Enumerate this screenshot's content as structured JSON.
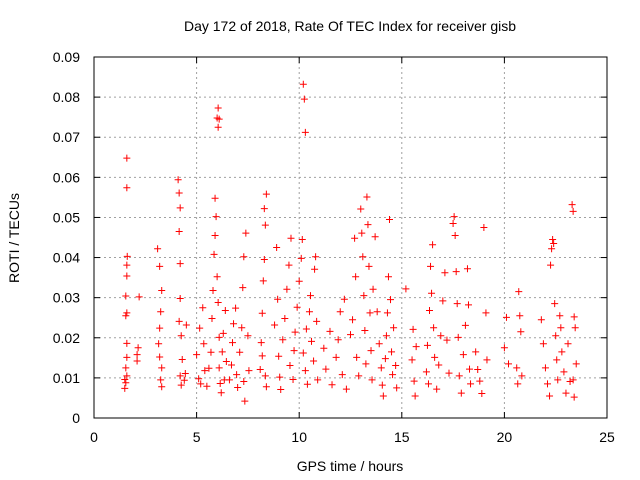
{
  "chart_data": {
    "type": "scatter",
    "title": "Day 172 of 2018, Rate Of TEC Index for receiver gisb",
    "xlabel": "GPS time / hours",
    "ylabel": "ROTI / TECUs",
    "xlim": [
      0,
      25
    ],
    "ylim": [
      0,
      0.09
    ],
    "xticks": [
      "0",
      "5",
      "10",
      "15",
      "20",
      "25"
    ],
    "yticks": [
      "0",
      "0.01",
      "0.02",
      "0.03",
      "0.04",
      "0.05",
      "0.06",
      "0.07",
      "0.08",
      "0.09"
    ],
    "grid": true,
    "marker": "+",
    "marker_color": "#ff0000",
    "series": [
      {
        "values": [
          [
            1.5,
            0.0096
          ],
          [
            1.55,
            0.0125
          ],
          [
            1.6,
            0.0151
          ],
          [
            1.5,
            0.0074
          ],
          [
            1.6,
            0.0186
          ],
          [
            1.55,
            0.0255
          ],
          [
            1.6,
            0.0262
          ],
          [
            1.55,
            0.0304
          ],
          [
            1.6,
            0.0354
          ],
          [
            1.6,
            0.0381
          ],
          [
            1.62,
            0.0403
          ],
          [
            1.6,
            0.0648
          ],
          [
            1.6,
            0.0574
          ],
          [
            1.55,
            0.0088
          ],
          [
            1.6,
            0.0105
          ],
          [
            2.1,
            0.0142
          ],
          [
            2.15,
            0.0175
          ],
          [
            2.2,
            0.0302
          ],
          [
            2.1,
            0.0158
          ],
          [
            3.1,
            0.0422
          ],
          [
            3.2,
            0.0378
          ],
          [
            3.3,
            0.0318
          ],
          [
            3.25,
            0.0265
          ],
          [
            3.2,
            0.0224
          ],
          [
            3.2,
            0.0152
          ],
          [
            3.3,
            0.0125
          ],
          [
            3.25,
            0.0095
          ],
          [
            3.3,
            0.0078
          ],
          [
            3.15,
            0.0185
          ],
          [
            4.1,
            0.0594
          ],
          [
            4.15,
            0.0561
          ],
          [
            4.2,
            0.0524
          ],
          [
            4.15,
            0.0465
          ],
          [
            4.2,
            0.0385
          ],
          [
            4.2,
            0.0298
          ],
          [
            4.15,
            0.0241
          ],
          [
            4.25,
            0.0205
          ],
          [
            4.3,
            0.0146
          ],
          [
            4.2,
            0.0105
          ],
          [
            4.25,
            0.0082
          ],
          [
            4.4,
            0.0094
          ],
          [
            4.45,
            0.0111
          ],
          [
            4.5,
            0.0232
          ],
          [
            5.0,
            0.0158
          ],
          [
            5.1,
            0.0098
          ],
          [
            5.2,
            0.0085
          ],
          [
            5.15,
            0.0224
          ],
          [
            5.3,
            0.0275
          ],
          [
            5.35,
            0.0185
          ],
          [
            5.4,
            0.0118
          ],
          [
            5.5,
            0.0079
          ],
          [
            5.6,
            0.0124
          ],
          [
            5.7,
            0.0164
          ],
          [
            5.75,
            0.0248
          ],
          [
            5.8,
            0.0318
          ],
          [
            5.85,
            0.0408
          ],
          [
            5.9,
            0.0455
          ],
          [
            5.95,
            0.0502
          ],
          [
            5.9,
            0.0548
          ],
          [
            6.0,
            0.0352
          ],
          [
            6.05,
            0.0288
          ],
          [
            6.1,
            0.0201
          ],
          [
            6.1,
            0.0125
          ],
          [
            6.15,
            0.0086
          ],
          [
            6.2,
            0.0063
          ],
          [
            6.0,
            0.0748
          ],
          [
            6.05,
            0.0773
          ],
          [
            6.1,
            0.0745
          ],
          [
            6.05,
            0.0725
          ],
          [
            6.25,
            0.0165
          ],
          [
            6.3,
            0.0211
          ],
          [
            6.35,
            0.0095
          ],
          [
            6.4,
            0.0268
          ],
          [
            6.45,
            0.0141
          ],
          [
            6.6,
            0.0095
          ],
          [
            6.7,
            0.0132
          ],
          [
            6.75,
            0.0188
          ],
          [
            6.8,
            0.0235
          ],
          [
            6.9,
            0.0274
          ],
          [
            6.95,
            0.0108
          ],
          [
            7.0,
            0.0076
          ],
          [
            7.1,
            0.0164
          ],
          [
            7.2,
            0.0225
          ],
          [
            7.25,
            0.0325
          ],
          [
            7.3,
            0.0402
          ],
          [
            7.4,
            0.0461
          ],
          [
            7.3,
            0.0091
          ],
          [
            7.35,
            0.0042
          ],
          [
            7.5,
            0.0205
          ],
          [
            7.55,
            0.0118
          ],
          [
            8.1,
            0.0121
          ],
          [
            8.15,
            0.0188
          ],
          [
            8.2,
            0.0261
          ],
          [
            8.25,
            0.0342
          ],
          [
            8.3,
            0.0395
          ],
          [
            8.35,
            0.0481
          ],
          [
            8.4,
            0.0558
          ],
          [
            8.3,
            0.0522
          ],
          [
            8.35,
            0.0105
          ],
          [
            8.4,
            0.0078
          ],
          [
            8.2,
            0.0155
          ],
          [
            8.8,
            0.0232
          ],
          [
            8.9,
            0.0425
          ],
          [
            8.95,
            0.0296
          ],
          [
            9.0,
            0.0154
          ],
          [
            9.05,
            0.0102
          ],
          [
            9.1,
            0.0071
          ],
          [
            9.2,
            0.0195
          ],
          [
            9.3,
            0.0248
          ],
          [
            9.4,
            0.0321
          ],
          [
            9.5,
            0.0381
          ],
          [
            9.6,
            0.0448
          ],
          [
            9.55,
            0.0131
          ],
          [
            9.7,
            0.0096
          ],
          [
            9.75,
            0.0168
          ],
          [
            9.8,
            0.0214
          ],
          [
            9.9,
            0.0276
          ],
          [
            10.0,
            0.0341
          ],
          [
            10.1,
            0.0398
          ],
          [
            10.15,
            0.0445
          ],
          [
            10.2,
            0.0832
          ],
          [
            10.25,
            0.0795
          ],
          [
            10.3,
            0.0712
          ],
          [
            10.2,
            0.0162
          ],
          [
            10.3,
            0.0118
          ],
          [
            10.4,
            0.0084
          ],
          [
            10.35,
            0.0222
          ],
          [
            10.5,
            0.0265
          ],
          [
            10.55,
            0.0305
          ],
          [
            10.6,
            0.0191
          ],
          [
            10.7,
            0.0142
          ],
          [
            10.75,
            0.0371
          ],
          [
            10.8,
            0.0402
          ],
          [
            10.9,
            0.0095
          ],
          [
            10.85,
            0.0241
          ],
          [
            11.2,
            0.0174
          ],
          [
            11.3,
            0.0122
          ],
          [
            11.5,
            0.0216
          ],
          [
            11.6,
            0.0083
          ],
          [
            11.8,
            0.0151
          ],
          [
            11.9,
            0.0195
          ],
          [
            12.0,
            0.0265
          ],
          [
            12.1,
            0.0108
          ],
          [
            12.2,
            0.0296
          ],
          [
            12.3,
            0.0072
          ],
          [
            12.5,
            0.0208
          ],
          [
            12.6,
            0.0245
          ],
          [
            12.7,
            0.0448
          ],
          [
            12.75,
            0.0352
          ],
          [
            12.8,
            0.0151
          ],
          [
            12.9,
            0.0105
          ],
          [
            13.0,
            0.0521
          ],
          [
            13.05,
            0.0461
          ],
          [
            13.1,
            0.0402
          ],
          [
            13.15,
            0.0305
          ],
          [
            13.2,
            0.0218
          ],
          [
            13.25,
            0.0135
          ],
          [
            13.3,
            0.0551
          ],
          [
            13.35,
            0.0482
          ],
          [
            13.4,
            0.0378
          ],
          [
            13.45,
            0.0262
          ],
          [
            13.5,
            0.0168
          ],
          [
            13.55,
            0.0095
          ],
          [
            13.6,
            0.0321
          ],
          [
            13.7,
            0.0452
          ],
          [
            13.8,
            0.0265
          ],
          [
            13.9,
            0.0185
          ],
          [
            14.0,
            0.0125
          ],
          [
            14.05,
            0.0082
          ],
          [
            14.1,
            0.0055
          ],
          [
            14.2,
            0.0148
          ],
          [
            14.25,
            0.0205
          ],
          [
            14.3,
            0.0262
          ],
          [
            14.35,
            0.0352
          ],
          [
            14.4,
            0.0495
          ],
          [
            14.45,
            0.0295
          ],
          [
            14.5,
            0.0165
          ],
          [
            14.55,
            0.0108
          ],
          [
            14.6,
            0.0225
          ],
          [
            14.7,
            0.0131
          ],
          [
            14.75,
            0.0075
          ],
          [
            15.2,
            0.0322
          ],
          [
            15.5,
            0.0145
          ],
          [
            15.55,
            0.0221
          ],
          [
            15.6,
            0.0092
          ],
          [
            15.65,
            0.0055
          ],
          [
            15.7,
            0.0178
          ],
          [
            16.2,
            0.0115
          ],
          [
            16.25,
            0.0181
          ],
          [
            16.3,
            0.0085
          ],
          [
            16.35,
            0.0268
          ],
          [
            16.4,
            0.0378
          ],
          [
            16.5,
            0.0432
          ],
          [
            16.45,
            0.0311
          ],
          [
            16.55,
            0.0225
          ],
          [
            16.6,
            0.0151
          ],
          [
            16.7,
            0.0072
          ],
          [
            16.8,
            0.0132
          ],
          [
            16.9,
            0.0205
          ],
          [
            17.0,
            0.0292
          ],
          [
            17.1,
            0.0362
          ],
          [
            17.2,
            0.0194
          ],
          [
            17.3,
            0.0112
          ],
          [
            17.5,
            0.0485
          ],
          [
            17.55,
            0.0502
          ],
          [
            17.6,
            0.0455
          ],
          [
            17.65,
            0.0365
          ],
          [
            17.7,
            0.0285
          ],
          [
            17.75,
            0.0201
          ],
          [
            17.8,
            0.0105
          ],
          [
            17.9,
            0.0062
          ],
          [
            18.0,
            0.0158
          ],
          [
            18.1,
            0.0231
          ],
          [
            18.2,
            0.0372
          ],
          [
            18.25,
            0.0282
          ],
          [
            18.3,
            0.0122
          ],
          [
            18.35,
            0.0085
          ],
          [
            18.6,
            0.0165
          ],
          [
            18.7,
            0.0121
          ],
          [
            18.8,
            0.0092
          ],
          [
            18.9,
            0.0061
          ],
          [
            19.0,
            0.0475
          ],
          [
            19.1,
            0.0262
          ],
          [
            19.15,
            0.0145
          ],
          [
            20.0,
            0.0175
          ],
          [
            20.1,
            0.0251
          ],
          [
            20.2,
            0.0135
          ],
          [
            20.6,
            0.0125
          ],
          [
            20.65,
            0.0085
          ],
          [
            20.7,
            0.0315
          ],
          [
            20.75,
            0.0255
          ],
          [
            20.8,
            0.0215
          ],
          [
            20.85,
            0.0105
          ],
          [
            21.8,
            0.0245
          ],
          [
            21.9,
            0.0185
          ],
          [
            22.0,
            0.0125
          ],
          [
            22.1,
            0.0085
          ],
          [
            22.2,
            0.0055
          ],
          [
            22.25,
            0.0381
          ],
          [
            22.3,
            0.0422
          ],
          [
            22.35,
            0.0445
          ],
          [
            22.4,
            0.0435
          ],
          [
            22.45,
            0.0285
          ],
          [
            22.5,
            0.0205
          ],
          [
            22.55,
            0.0145
          ],
          [
            22.6,
            0.0095
          ],
          [
            22.7,
            0.0255
          ],
          [
            22.75,
            0.0225
          ],
          [
            22.8,
            0.0165
          ],
          [
            22.9,
            0.0115
          ],
          [
            23.0,
            0.0062
          ],
          [
            23.1,
            0.0185
          ],
          [
            23.2,
            0.0091
          ],
          [
            23.3,
            0.0532
          ],
          [
            23.35,
            0.0515
          ],
          [
            23.4,
            0.0252
          ],
          [
            23.45,
            0.0225
          ],
          [
            23.5,
            0.0135
          ],
          [
            23.35,
            0.0095
          ],
          [
            23.4,
            0.0052
          ]
        ]
      }
    ]
  }
}
